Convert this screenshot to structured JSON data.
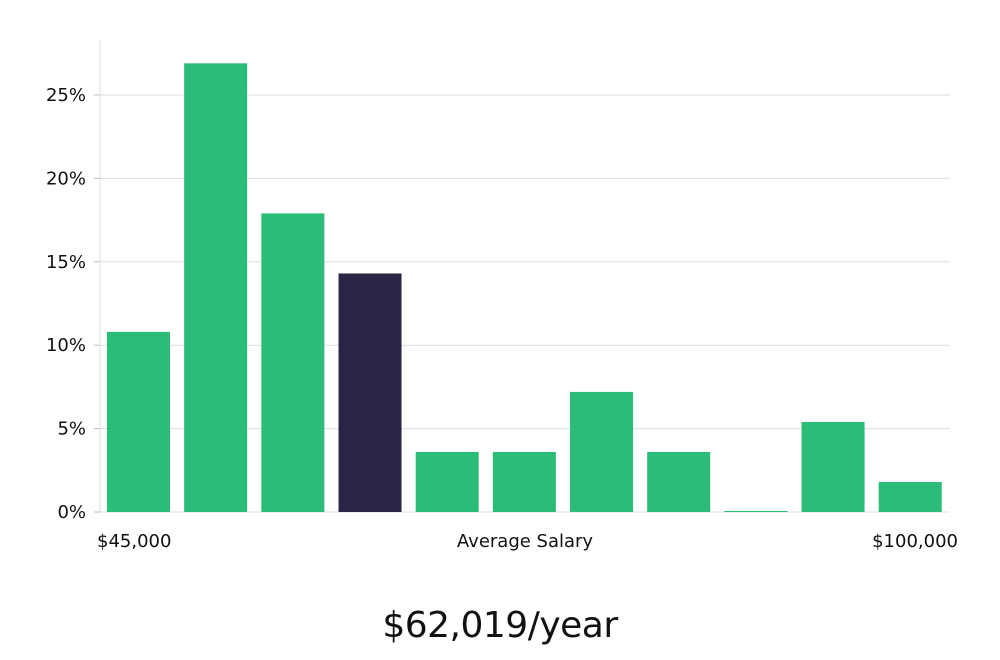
{
  "chart_data": {
    "type": "bar",
    "values": [
      10.8,
      26.9,
      17.9,
      14.3,
      3.6,
      3.6,
      7.2,
      3.6,
      0.0,
      5.4,
      1.8
    ],
    "highlight_index": 3,
    "ylim": [
      0,
      28
    ],
    "yticks": [
      0,
      5,
      10,
      15,
      20,
      25
    ],
    "ytick_suffix": "%",
    "x_labels": {
      "left": "$45,000",
      "center": "Average Salary",
      "right": "$100,000"
    },
    "grid": true,
    "colors": {
      "bar": "#2bbd77",
      "highlight": "#2a2545",
      "grid": "#dddddd",
      "axis": "#dddddd"
    }
  },
  "summary": {
    "value": "$62,019/year"
  }
}
